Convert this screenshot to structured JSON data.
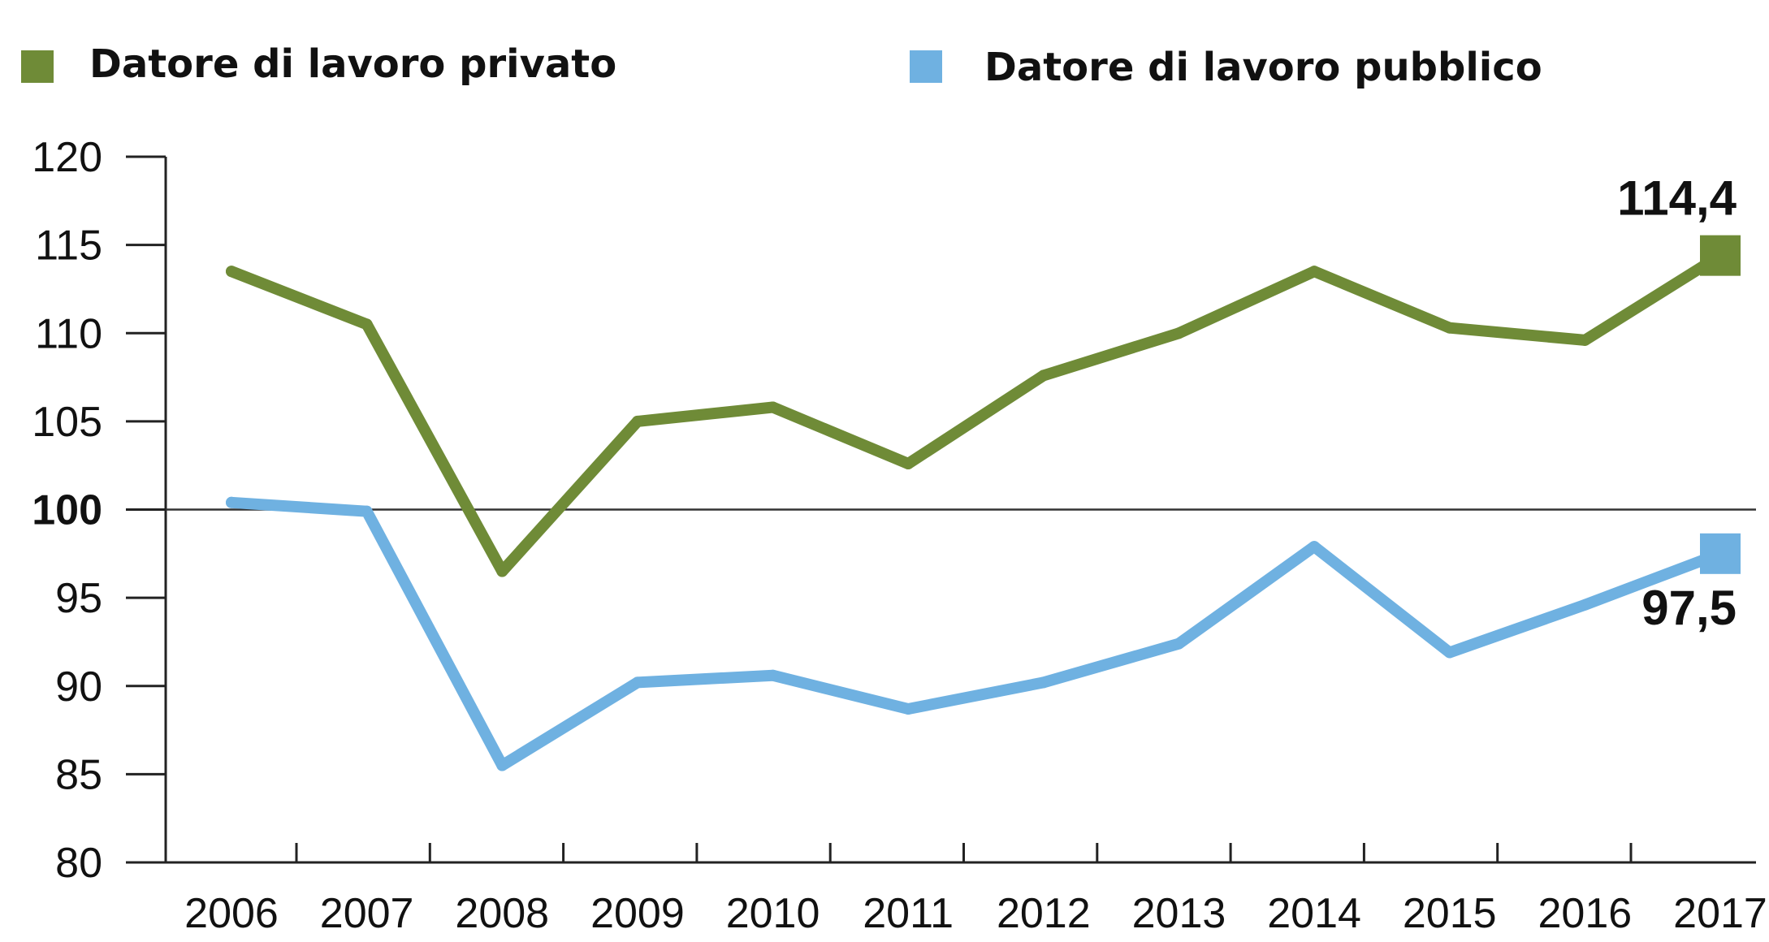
{
  "chart_data": {
    "type": "line",
    "x": [
      "2006",
      "2007",
      "2008",
      "2009",
      "2010",
      "2011",
      "2012",
      "2013",
      "2014",
      "2015",
      "2016",
      "2017"
    ],
    "series": [
      {
        "name": "Datore di lavoro privato",
        "color": "#6f8b37",
        "values": [
          113.5,
          110.5,
          96.5,
          105.0,
          105.8,
          102.6,
          107.6,
          110.0,
          113.5,
          110.3,
          109.6,
          114.4
        ],
        "end_label": "114,4"
      },
      {
        "name": "Datore di lavoro pubblico",
        "color": "#6fb1e1",
        "values": [
          100.4,
          99.9,
          85.5,
          90.2,
          90.6,
          88.7,
          90.2,
          92.4,
          97.9,
          91.9,
          94.6,
          97.5
        ],
        "end_label": "97,5"
      }
    ],
    "yticks": [
      "80",
      "85",
      "90",
      "95",
      "100",
      "105",
      "110",
      "115",
      "120"
    ],
    "ylim": [
      80,
      120
    ],
    "reference_line": 100,
    "legend_position": "top"
  }
}
